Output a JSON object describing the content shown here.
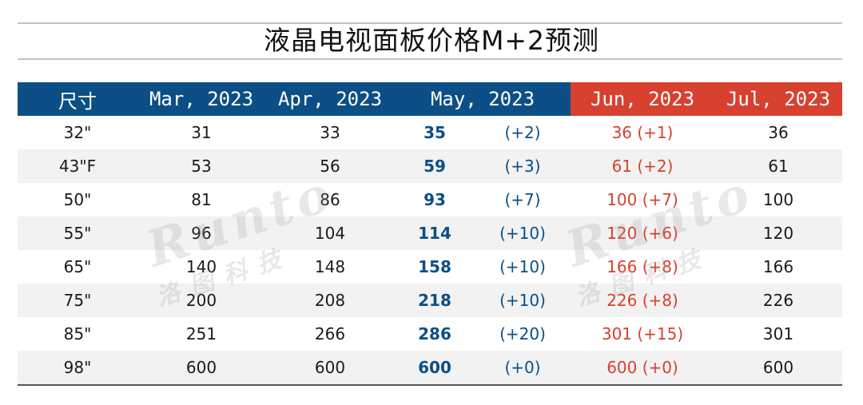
{
  "title": "液晶电视面板价格M+2预测",
  "header": {
    "size": "尺寸",
    "mar": "Mar, 2023",
    "apr": "Apr, 2023",
    "may": "May, 2023",
    "jun": "Jun, 2023",
    "jul": "Jul, 2023"
  },
  "rows": [
    {
      "size": "32\"",
      "mar": "31",
      "apr": "33",
      "may": "35",
      "may_delta": "(+2)",
      "jun": "36 (+1)",
      "jul": "36"
    },
    {
      "size": "43\"F",
      "mar": "53",
      "apr": "56",
      "may": "59",
      "may_delta": "(+3)",
      "jun": "61 (+2)",
      "jul": "61"
    },
    {
      "size": "50\"",
      "mar": "81",
      "apr": "86",
      "may": "93",
      "may_delta": "(+7)",
      "jun": "100 (+7)",
      "jul": "100"
    },
    {
      "size": "55\"",
      "mar": "96",
      "apr": "104",
      "may": "114",
      "may_delta": "(+10)",
      "jun": "120 (+6)",
      "jul": "120"
    },
    {
      "size": "65\"",
      "mar": "140",
      "apr": "148",
      "may": "158",
      "may_delta": "(+10)",
      "jun": "166 (+8)",
      "jul": "166"
    },
    {
      "size": "75\"",
      "mar": "200",
      "apr": "208",
      "may": "218",
      "may_delta": "(+10)",
      "jun": "226 (+8)",
      "jul": "226"
    },
    {
      "size": "85\"",
      "mar": "251",
      "apr": "266",
      "may": "286",
      "may_delta": "(+20)",
      "jun": "301 (+15)",
      "jul": "301"
    },
    {
      "size": "98\"",
      "mar": "600",
      "apr": "600",
      "may": "600",
      "may_delta": "(+0)",
      "jun": "600 (+0)",
      "jul": "600"
    }
  ],
  "watermark": {
    "latin": "Runto",
    "cn": "洛图科技"
  },
  "colors": {
    "header_blue": "#0c4f86",
    "header_red": "#d8402f",
    "row_shade": "#f2f2f2"
  }
}
